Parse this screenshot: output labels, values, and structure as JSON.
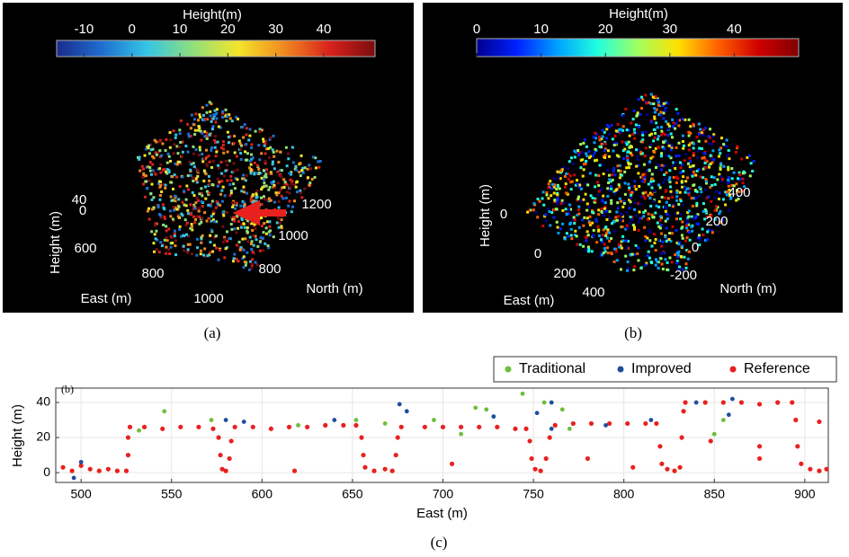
{
  "panels": [
    {
      "label": "(a)",
      "colorbar": {
        "title": "Height(m)",
        "ticks": [
          -10,
          0,
          10,
          20,
          30,
          40
        ],
        "lim": [
          -15.7,
          50.7
        ],
        "colormap": [
          "#1a2a8c",
          "#1f6fd0",
          "#35c6e6",
          "#8fe07a",
          "#f5e52a",
          "#f08a1f",
          "#d9221c",
          "#7a0d0d"
        ]
      },
      "axes": {
        "z_label": "Height (m)",
        "z_ticks": [
          40,
          0
        ],
        "x_label": "East (m)",
        "x_ticks": [
          600,
          800,
          1000
        ],
        "y_label": "North (m)",
        "y_ticks": [
          800,
          1000,
          1200
        ]
      }
    },
    {
      "label": "(b)",
      "colorbar": {
        "title": "Height(m)",
        "ticks": [
          0,
          10,
          20,
          30,
          40
        ],
        "lim": [
          0,
          50
        ],
        "colormap": [
          "#00008f",
          "#0020ff",
          "#00a0ff",
          "#20ffe0",
          "#a0ff60",
          "#ffe000",
          "#ff6000",
          "#d00000",
          "#800000"
        ]
      },
      "axes": {
        "z_label": "Height (m)",
        "z_ticks": [
          0
        ],
        "x_label": "East (m)",
        "x_ticks": [
          0,
          200,
          400
        ],
        "y_label": "North (m)",
        "y_ticks": [
          -200,
          0,
          200,
          400
        ]
      }
    }
  ],
  "chart_data": {
    "type": "scatter",
    "label": "(c)",
    "annotation": "(b)",
    "x_label": "East (m)",
    "y_label": "Height (m)",
    "xlim": [
      486,
      913
    ],
    "ylim": [
      -5.6,
      48.2
    ],
    "xticks": [
      500,
      550,
      600,
      650,
      700,
      750,
      800,
      850,
      900
    ],
    "yticks": [
      0,
      20,
      40
    ],
    "grid": true,
    "legend": "top-right",
    "series": [
      {
        "name": "Traditional",
        "color": "#6cbf3a",
        "x": [
          546,
          532,
          572,
          620,
          652,
          668,
          695,
          718,
          724,
          744,
          756,
          766,
          710,
          770,
          850,
          855
        ],
        "values": [
          35,
          24,
          30,
          27,
          30,
          28,
          30,
          37,
          36,
          45,
          40,
          36,
          22,
          25,
          22,
          30
        ]
      },
      {
        "name": "Improved",
        "color": "#1f4e9c",
        "x": [
          496,
          500,
          580,
          590,
          640,
          676,
          680,
          728,
          752,
          760,
          790,
          815,
          840,
          860,
          858,
          760
        ],
        "values": [
          -3,
          6,
          30,
          29,
          30,
          39,
          35,
          32,
          34,
          40,
          27,
          30,
          40,
          42,
          33,
          25
        ]
      },
      {
        "name": "Reference",
        "color": "#e8211f",
        "x": [
          490,
          495,
          500,
          505,
          510,
          515,
          520,
          525,
          526,
          526,
          527,
          535,
          545,
          555,
          565,
          573,
          576,
          577,
          578,
          580,
          582,
          583,
          585,
          595,
          605,
          615,
          625,
          635,
          645,
          652,
          655,
          656,
          657,
          662,
          668,
          672,
          674,
          675,
          677,
          690,
          700,
          710,
          720,
          730,
          740,
          746,
          748,
          749,
          751,
          754,
          757,
          759,
          762,
          772,
          782,
          792,
          802,
          812,
          818,
          820,
          821,
          824,
          828,
          831,
          832,
          833,
          834,
          845,
          855,
          865,
          875,
          885,
          893,
          895,
          896,
          898,
          903,
          908,
          912,
          618,
          705,
          780,
          805,
          875,
          875,
          848,
          908
        ],
        "values": [
          3,
          1,
          4,
          2,
          1,
          2,
          1,
          1,
          10,
          20,
          26,
          26,
          25,
          26,
          26,
          25,
          20,
          10,
          2,
          1,
          8,
          18,
          26,
          26,
          25,
          26,
          26,
          27,
          27,
          27,
          20,
          10,
          3,
          1,
          2,
          1,
          10,
          20,
          26,
          26,
          26,
          26,
          26,
          26,
          25,
          25,
          18,
          8,
          2,
          1,
          8,
          20,
          27,
          28,
          28,
          28,
          28,
          28,
          28,
          15,
          5,
          2,
          1,
          3,
          20,
          35,
          40,
          40,
          40,
          40,
          39,
          40,
          40,
          30,
          15,
          5,
          2,
          1,
          2,
          1,
          5,
          8,
          3,
          15,
          8,
          18,
          29
        ]
      }
    ]
  }
}
